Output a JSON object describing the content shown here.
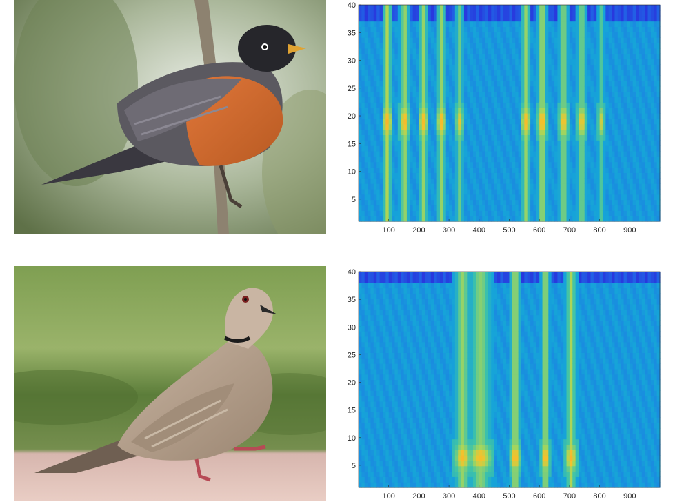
{
  "charts": [
    {
      "id": "robin",
      "bird_illustration": "american-robin",
      "chart_data": {
        "type": "heatmap",
        "title": "",
        "xlabel": "",
        "ylabel": "",
        "xlim": [
          0,
          1000
        ],
        "ylim": [
          1,
          40
        ],
        "xticks": [
          100,
          200,
          300,
          400,
          500,
          600,
          700,
          800,
          900
        ],
        "yticks": [
          5,
          10,
          15,
          20,
          25,
          30,
          35,
          40
        ],
        "colormap": [
          "#2a2ddb",
          "#1f6fe8",
          "#16a3d9",
          "#3fc3a8",
          "#a8d65a",
          "#f3c32d",
          "#fbb12a"
        ],
        "columns": [
          {
            "x": 95,
            "width": 12,
            "intensity": 0.85
          },
          {
            "x": 152,
            "width": 12,
            "intensity": 0.8
          },
          {
            "x": 215,
            "width": 12,
            "intensity": 0.75
          },
          {
            "x": 275,
            "width": 12,
            "intensity": 0.75
          },
          {
            "x": 335,
            "width": 10,
            "intensity": 0.6
          },
          {
            "x": 555,
            "width": 12,
            "intensity": 0.75
          },
          {
            "x": 610,
            "width": 12,
            "intensity": 0.85
          },
          {
            "x": 680,
            "width": 12,
            "intensity": 0.75
          },
          {
            "x": 740,
            "width": 12,
            "intensity": 0.7
          },
          {
            "x": 805,
            "width": 8,
            "intensity": 0.5
          }
        ],
        "hot_band": {
          "y_center": 19,
          "y_half": 2.5
        },
        "background_band": {
          "y_from": 1,
          "y_to": 37
        }
      }
    },
    {
      "id": "dove",
      "bird_illustration": "eurasian-collared-dove",
      "chart_data": {
        "type": "heatmap",
        "title": "",
        "xlabel": "",
        "ylabel": "",
        "xlim": [
          0,
          1000
        ],
        "ylim": [
          1,
          40
        ],
        "xticks": [
          100,
          200,
          300,
          400,
          500,
          600,
          700,
          800,
          900
        ],
        "yticks": [
          5,
          10,
          15,
          20,
          25,
          30,
          35,
          40
        ],
        "colormap": [
          "#2a2ddb",
          "#1f6fe8",
          "#16a3d9",
          "#3fc3a8",
          "#a8d65a",
          "#f3c32d",
          "#fbb12a"
        ],
        "columns": [
          {
            "x": 345,
            "width": 20,
            "intensity": 0.75
          },
          {
            "x": 405,
            "width": 30,
            "intensity": 0.7
          },
          {
            "x": 520,
            "width": 14,
            "intensity": 0.8
          },
          {
            "x": 620,
            "width": 10,
            "intensity": 0.9
          },
          {
            "x": 705,
            "width": 14,
            "intensity": 0.85
          }
        ],
        "hot_band": {
          "y_center": 6.5,
          "y_half": 2.2
        },
        "background_band": {
          "y_from": 1,
          "y_to": 38
        }
      }
    }
  ]
}
